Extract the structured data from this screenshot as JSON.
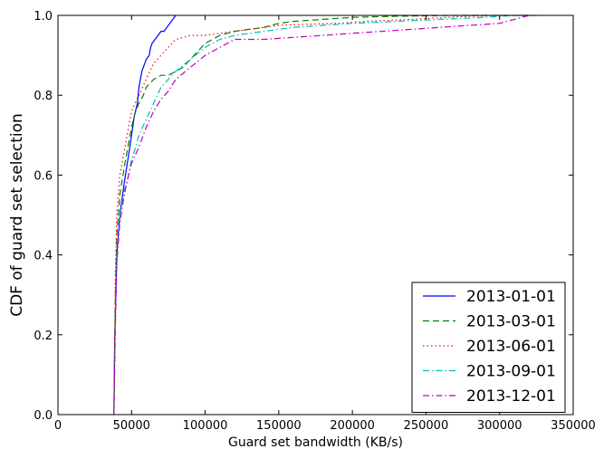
{
  "chart_data": {
    "type": "line",
    "xlabel": "Guard set bandwidth (KB/s)",
    "ylabel": "CDF of guard set selection",
    "xlim": [
      0,
      350000
    ],
    "ylim": [
      0.0,
      1.0
    ],
    "x_ticks": [
      0,
      50000,
      100000,
      150000,
      200000,
      250000,
      300000,
      350000
    ],
    "x_tick_labels": [
      "0",
      "50000",
      "100000",
      "150000",
      "200000",
      "250000",
      "300000",
      "350000"
    ],
    "y_ticks": [
      0.0,
      0.2,
      0.4,
      0.6,
      0.8,
      1.0
    ],
    "y_tick_labels": [
      "0.0",
      "0.2",
      "0.4",
      "0.6",
      "0.8",
      "1.0"
    ],
    "grid": false,
    "legend_position": "bottom-right",
    "series": [
      {
        "name": "2013-01-01",
        "color": "#0000ff",
        "dash": "solid",
        "x": [
          38000,
          38500,
          40000,
          42000,
          45000,
          48000,
          50000,
          52000,
          54000,
          55000,
          56000,
          57000,
          58000,
          60000,
          62000,
          63000,
          64000,
          66000,
          68000,
          70000,
          72000,
          74000,
          76000,
          78000,
          80000
        ],
        "y": [
          0.0,
          0.18,
          0.4,
          0.5,
          0.58,
          0.65,
          0.7,
          0.75,
          0.78,
          0.82,
          0.84,
          0.86,
          0.87,
          0.89,
          0.9,
          0.92,
          0.93,
          0.94,
          0.95,
          0.96,
          0.96,
          0.97,
          0.98,
          0.99,
          1.0
        ]
      },
      {
        "name": "2013-03-01",
        "color": "#008000",
        "dash": "dashed",
        "x": [
          38000,
          39000,
          40000,
          42000,
          45000,
          48000,
          50000,
          52000,
          55000,
          58000,
          60000,
          65000,
          70000,
          75000,
          80000,
          85000,
          90000,
          95000,
          100000,
          110000,
          120000,
          130000,
          140000,
          150000,
          160000,
          180000,
          200000,
          230000,
          270000,
          300000,
          320000
        ],
        "y": [
          0.0,
          0.3,
          0.45,
          0.55,
          0.62,
          0.68,
          0.72,
          0.75,
          0.78,
          0.8,
          0.82,
          0.84,
          0.85,
          0.85,
          0.86,
          0.87,
          0.89,
          0.91,
          0.93,
          0.95,
          0.96,
          0.965,
          0.97,
          0.98,
          0.985,
          0.99,
          0.995,
          0.998,
          1.0,
          1.0,
          1.0
        ]
      },
      {
        "name": "2013-06-01",
        "color": "#ff0000",
        "dash": "dotted",
        "x": [
          38000,
          39000,
          40000,
          42000,
          45000,
          48000,
          50000,
          55000,
          60000,
          65000,
          70000,
          75000,
          80000,
          85000,
          90000,
          100000,
          110000,
          120000,
          130000,
          140000,
          150000,
          170000,
          190000,
          210000,
          240000,
          280000,
          300000
        ],
        "y": [
          0.0,
          0.35,
          0.5,
          0.6,
          0.66,
          0.72,
          0.76,
          0.8,
          0.84,
          0.88,
          0.9,
          0.92,
          0.94,
          0.945,
          0.95,
          0.95,
          0.955,
          0.96,
          0.965,
          0.97,
          0.975,
          0.978,
          0.98,
          0.985,
          0.99,
          0.998,
          1.0
        ]
      },
      {
        "name": "2013-09-01",
        "color": "#00bfbf",
        "dash": "dashdot",
        "x": [
          38000,
          39000,
          40000,
          42000,
          45000,
          48000,
          50000,
          52000,
          55000,
          60000,
          65000,
          70000,
          75000,
          80000,
          90000,
          100000,
          110000,
          120000,
          140000,
          160000,
          180000,
          200000,
          230000,
          260000,
          290000,
          310000,
          330000
        ],
        "y": [
          0.0,
          0.25,
          0.4,
          0.5,
          0.56,
          0.6,
          0.64,
          0.66,
          0.7,
          0.74,
          0.78,
          0.82,
          0.84,
          0.86,
          0.89,
          0.92,
          0.94,
          0.95,
          0.96,
          0.97,
          0.975,
          0.98,
          0.985,
          0.99,
          0.995,
          1.0,
          1.0
        ]
      },
      {
        "name": "2013-12-01",
        "color": "#bf00bf",
        "dash": "dashdot",
        "x": [
          38000,
          39000,
          40000,
          42000,
          45000,
          48000,
          50000,
          55000,
          60000,
          65000,
          70000,
          75000,
          80000,
          90000,
          100000,
          110000,
          120000,
          140000,
          160000,
          180000,
          200000,
          220000,
          240000,
          260000,
          280000,
          300000,
          310000,
          320000
        ],
        "y": [
          0.0,
          0.22,
          0.38,
          0.48,
          0.55,
          0.6,
          0.63,
          0.67,
          0.72,
          0.76,
          0.79,
          0.81,
          0.84,
          0.87,
          0.9,
          0.92,
          0.94,
          0.94,
          0.945,
          0.95,
          0.955,
          0.96,
          0.965,
          0.97,
          0.975,
          0.98,
          0.99,
          1.0
        ]
      }
    ]
  }
}
